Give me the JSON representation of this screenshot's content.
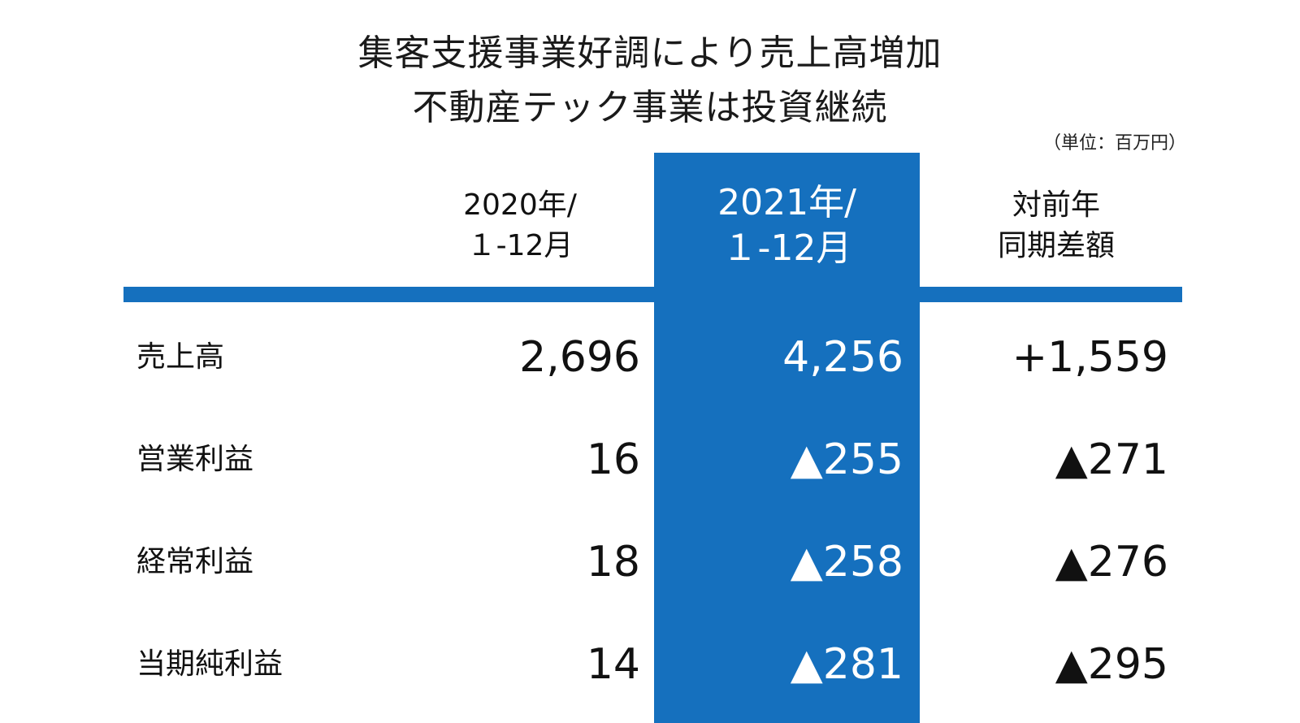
{
  "title": {
    "line1": "集客支援事業好調により売上高増加",
    "line2": "不動産テック事業は投資継続"
  },
  "unit_note": "（単位：百万円）",
  "columns": {
    "prev_year": {
      "line1": "2020年/",
      "line2": "１-12月"
    },
    "current_year": {
      "line1": "2021年/",
      "line2": "１-12月"
    },
    "diff": {
      "line1": "対前年",
      "line2": "同期差額"
    }
  },
  "rows": [
    {
      "label": "売上高",
      "prev": "2,696",
      "current": "4,256",
      "diff": "+1,559"
    },
    {
      "label": "営業利益",
      "prev": "16",
      "current": "▲255",
      "diff": "▲271"
    },
    {
      "label": "経常利益",
      "prev": "18",
      "current": "▲258",
      "diff": "▲276"
    },
    {
      "label": "当期純利益",
      "prev": "14",
      "current": "▲281",
      "diff": "▲295"
    }
  ],
  "colors": {
    "accent": "#1570be",
    "text": "#111111",
    "highlight_text": "#ffffff"
  }
}
